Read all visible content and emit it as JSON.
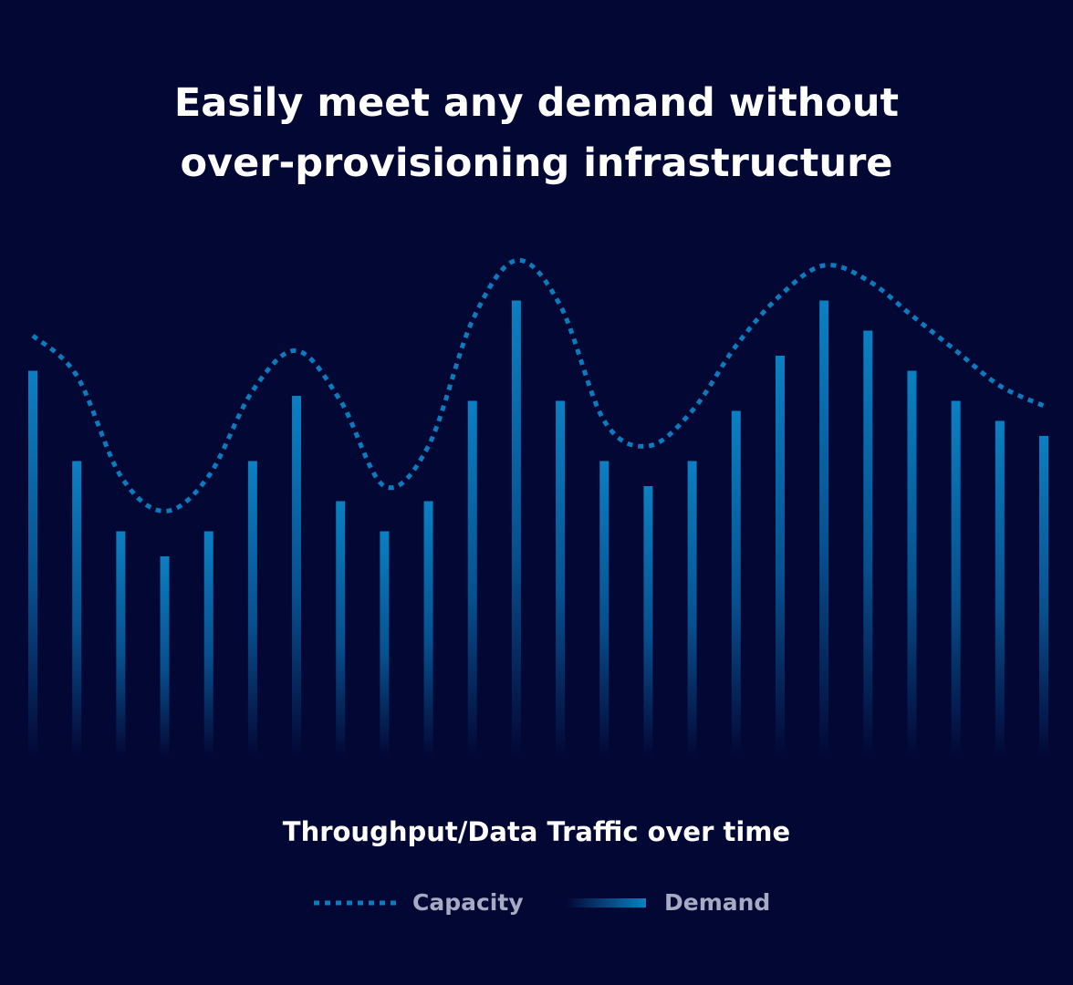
{
  "chart_data": {
    "type": "bar-line",
    "title": [
      "Easily meet any demand without",
      "over-provisioning infrastructure"
    ],
    "xlabel": "Throughput/Data Traffic over time",
    "categories": [
      null,
      null,
      null,
      null,
      null,
      null,
      null,
      null,
      null,
      null,
      null,
      null,
      null,
      null,
      null,
      null,
      null,
      null,
      null,
      null,
      null,
      null,
      null,
      null
    ],
    "series": [
      {
        "name": "Capacity",
        "kind": "line",
        "color": "#0b7bbd",
        "values": [
          84,
          76,
          56,
          49,
          56,
          73,
          81,
          71,
          54,
          62,
          87,
          99,
          90,
          67,
          62,
          69,
          82,
          92,
          98,
          95,
          88,
          81,
          74,
          70
        ]
      },
      {
        "name": "Demand",
        "kind": "bar",
        "color": "#0a80c2",
        "values": [
          77,
          59,
          45,
          40,
          45,
          59,
          72,
          51,
          45,
          51,
          71,
          91,
          71,
          59,
          54,
          59,
          69,
          80,
          91,
          85,
          77,
          71,
          67,
          64
        ]
      }
    ],
    "ylim": [
      0,
      100
    ]
  }
}
